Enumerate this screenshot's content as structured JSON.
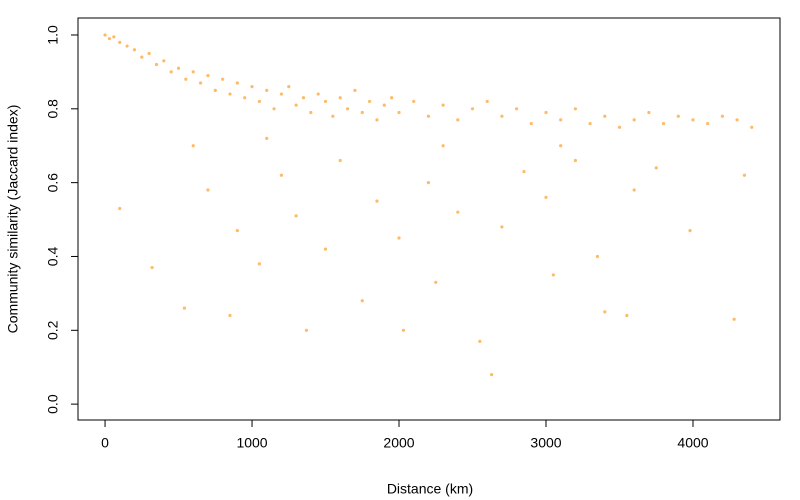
{
  "chart_data": {
    "type": "scatter",
    "x_label": "Distance (km)",
    "y_label": "Community similarity (Jaccard index)",
    "color": "#ff8c00",
    "xlim": [
      -184,
      4592
    ],
    "ylim": [
      -0.043,
      1.046
    ],
    "xticks": [
      0,
      1000,
      2000,
      3000,
      4000
    ],
    "yticks": [
      {
        "value": 0,
        "label": "0.0"
      },
      0.2,
      0.4,
      0.6,
      0.8,
      {
        "value": 1,
        "label": "1.0"
      }
    ],
    "x": [
      0,
      30,
      60,
      100,
      150,
      200,
      250,
      300,
      350,
      400,
      450,
      500,
      550,
      600,
      650,
      700,
      750,
      800,
      850,
      900,
      950,
      1000,
      1050,
      1100,
      1150,
      1200,
      1250,
      1300,
      1350,
      1400,
      1450,
      1500,
      1550,
      1600,
      1650,
      1700,
      1750,
      1800,
      1850,
      1900,
      1950,
      2000,
      2100,
      2200,
      2300,
      2400,
      2500,
      2600,
      2700,
      2800,
      2900,
      3000,
      3100,
      3200,
      3300,
      3400,
      3500,
      3600,
      3700,
      3800,
      3900,
      4000,
      4100,
      4200,
      4300,
      4400,
      100,
      320,
      540,
      700,
      850,
      900,
      1050,
      1200,
      1300,
      1370,
      1500,
      1600,
      1750,
      1850,
      2000,
      2030,
      2200,
      2250,
      2400,
      2550,
      2630,
      2700,
      2850,
      3000,
      3050,
      3200,
      3350,
      3400,
      3550,
      3600,
      3750,
      3980,
      4280,
      4350,
      600,
      1100,
      2300,
      3100
    ],
    "y": [
      1.0,
      0.99,
      0.995,
      0.98,
      0.97,
      0.96,
      0.94,
      0.95,
      0.92,
      0.93,
      0.9,
      0.91,
      0.88,
      0.9,
      0.87,
      0.89,
      0.85,
      0.88,
      0.84,
      0.87,
      0.83,
      0.86,
      0.82,
      0.85,
      0.8,
      0.84,
      0.86,
      0.81,
      0.83,
      0.79,
      0.84,
      0.82,
      0.78,
      0.83,
      0.8,
      0.85,
      0.79,
      0.82,
      0.77,
      0.81,
      0.83,
      0.79,
      0.82,
      0.78,
      0.81,
      0.77,
      0.8,
      0.82,
      0.78,
      0.8,
      0.76,
      0.79,
      0.77,
      0.8,
      0.76,
      0.78,
      0.75,
      0.77,
      0.79,
      0.76,
      0.78,
      0.77,
      0.76,
      0.78,
      0.77,
      0.75,
      0.53,
      0.37,
      0.26,
      0.58,
      0.24,
      0.47,
      0.38,
      0.62,
      0.51,
      0.2,
      0.42,
      0.66,
      0.28,
      0.55,
      0.45,
      0.2,
      0.6,
      0.33,
      0.52,
      0.17,
      0.08,
      0.48,
      0.63,
      0.56,
      0.35,
      0.66,
      0.4,
      0.25,
      0.24,
      0.58,
      0.64,
      0.47,
      0.23,
      0.62,
      0.7,
      0.72,
      0.7,
      0.7
    ]
  }
}
